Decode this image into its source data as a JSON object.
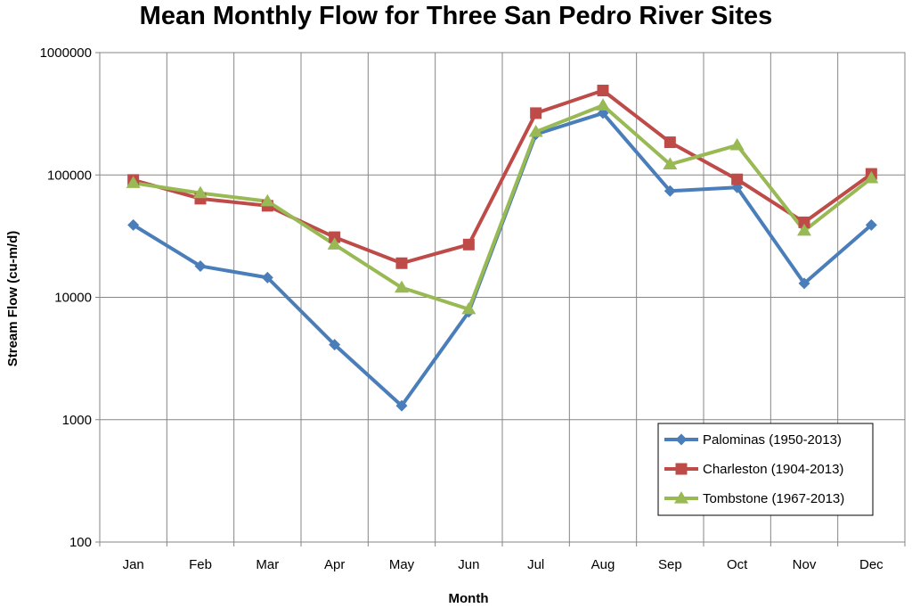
{
  "chart_data": {
    "type": "line",
    "title": "Mean Monthly Flow for Three San Pedro River Sites",
    "xlabel": "Month",
    "ylabel": "Stream Flow (cu-m/d)",
    "yscale": "log",
    "ylim": [
      100,
      1000000
    ],
    "yticks": [
      100,
      1000,
      10000,
      100000,
      1000000
    ],
    "ytick_labels": [
      "100",
      "1000",
      "10000",
      "100000",
      "1000000"
    ],
    "grid": true,
    "legend_position": "bottom-right",
    "categories": [
      "Jan",
      "Feb",
      "Mar",
      "Apr",
      "May",
      "Jun",
      "Jul",
      "Aug",
      "Sep",
      "Oct",
      "Nov",
      "Dec"
    ],
    "series": [
      {
        "name": "Palominas (1950-2013)",
        "color": "#4a7ebb",
        "marker": "diamond",
        "values": [
          39000,
          18000,
          14500,
          4100,
          1300,
          7600,
          215000,
          320000,
          74000,
          79000,
          13000,
          39000
        ]
      },
      {
        "name": "Charleston (1904-2013)",
        "color": "#be4b48",
        "marker": "square",
        "values": [
          91000,
          64000,
          56000,
          31000,
          19000,
          27000,
          320000,
          490000,
          185000,
          92000,
          41000,
          102000
        ]
      },
      {
        "name": "Tombstone (1967-2013)",
        "color": "#98b954",
        "marker": "triangle",
        "values": [
          86000,
          71000,
          61000,
          27000,
          12000,
          8000,
          225000,
          370000,
          122000,
          175000,
          35000,
          94000
        ]
      }
    ]
  }
}
